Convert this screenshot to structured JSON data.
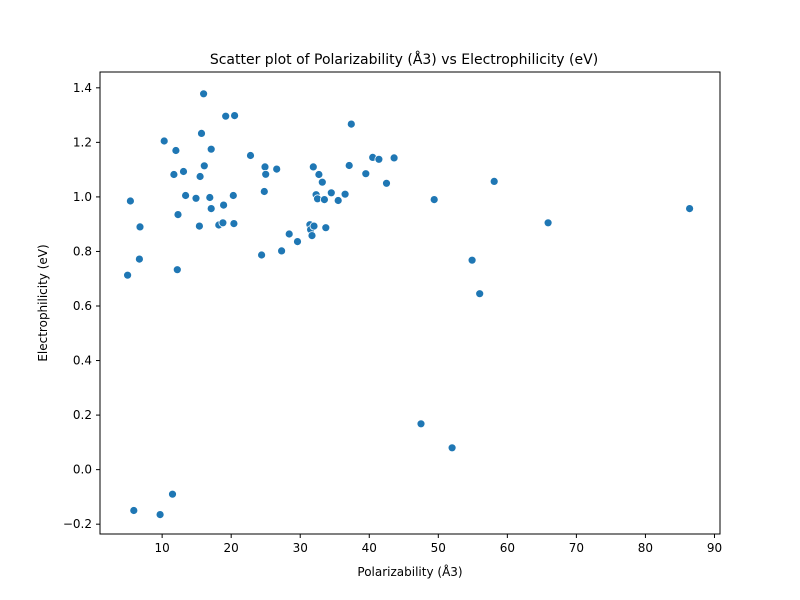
{
  "chart_data": {
    "type": "scatter",
    "title": "Scatter plot of Polarizability (Å3) vs Electrophilicity (eV)",
    "xlabel": "Polarizability (Å3)",
    "ylabel": "Electrophilicity (eV)",
    "xlim": [
      1.0,
      90.8
    ],
    "ylim": [
      -0.236,
      1.458
    ],
    "xticks": [
      10,
      20,
      30,
      40,
      50,
      60,
      70,
      80,
      90
    ],
    "yticks": [
      -0.2,
      0.0,
      0.2,
      0.4,
      0.6,
      0.8,
      1.0,
      1.2,
      1.4
    ],
    "xtick_labels": [
      "10",
      "20",
      "30",
      "40",
      "50",
      "60",
      "70",
      "80",
      "90"
    ],
    "ytick_labels": [
      "−0.2",
      "0.0",
      "0.2",
      "0.4",
      "0.6",
      "0.8",
      "1.0",
      "1.2",
      "1.4"
    ],
    "grid": false,
    "marker_color": "#1f77b4",
    "points": [
      {
        "x": 5.0,
        "y": 0.713
      },
      {
        "x": 5.4,
        "y": 0.985
      },
      {
        "x": 5.9,
        "y": -0.15
      },
      {
        "x": 6.7,
        "y": 0.772
      },
      {
        "x": 6.8,
        "y": 0.89
      },
      {
        "x": 9.7,
        "y": -0.165
      },
      {
        "x": 10.3,
        "y": 1.205
      },
      {
        "x": 11.5,
        "y": -0.09
      },
      {
        "x": 11.7,
        "y": 1.082
      },
      {
        "x": 12.0,
        "y": 1.17
      },
      {
        "x": 12.2,
        "y": 0.733
      },
      {
        "x": 12.3,
        "y": 0.935
      },
      {
        "x": 13.1,
        "y": 1.093
      },
      {
        "x": 13.4,
        "y": 1.005
      },
      {
        "x": 14.9,
        "y": 0.995
      },
      {
        "x": 15.4,
        "y": 0.893
      },
      {
        "x": 15.5,
        "y": 1.075
      },
      {
        "x": 15.7,
        "y": 1.233
      },
      {
        "x": 16.0,
        "y": 1.378
      },
      {
        "x": 16.1,
        "y": 1.114
      },
      {
        "x": 16.9,
        "y": 0.998
      },
      {
        "x": 17.1,
        "y": 1.175
      },
      {
        "x": 17.1,
        "y": 0.957
      },
      {
        "x": 18.2,
        "y": 0.897
      },
      {
        "x": 18.8,
        "y": 0.905
      },
      {
        "x": 18.9,
        "y": 0.97
      },
      {
        "x": 19.2,
        "y": 1.296
      },
      {
        "x": 20.3,
        "y": 1.005
      },
      {
        "x": 20.4,
        "y": 0.902
      },
      {
        "x": 20.5,
        "y": 1.298
      },
      {
        "x": 22.8,
        "y": 1.152
      },
      {
        "x": 24.4,
        "y": 0.787
      },
      {
        "x": 24.8,
        "y": 1.02
      },
      {
        "x": 24.9,
        "y": 1.11
      },
      {
        "x": 25.0,
        "y": 1.083
      },
      {
        "x": 26.6,
        "y": 1.102
      },
      {
        "x": 27.3,
        "y": 0.802
      },
      {
        "x": 28.4,
        "y": 0.864
      },
      {
        "x": 29.6,
        "y": 0.836
      },
      {
        "x": 31.4,
        "y": 0.898
      },
      {
        "x": 31.5,
        "y": 0.88
      },
      {
        "x": 31.7,
        "y": 0.858
      },
      {
        "x": 31.9,
        "y": 1.11
      },
      {
        "x": 32.0,
        "y": 0.893
      },
      {
        "x": 32.3,
        "y": 1.008
      },
      {
        "x": 32.5,
        "y": 0.993
      },
      {
        "x": 32.7,
        "y": 1.082
      },
      {
        "x": 33.2,
        "y": 1.054
      },
      {
        "x": 33.5,
        "y": 0.99
      },
      {
        "x": 33.7,
        "y": 0.887
      },
      {
        "x": 34.5,
        "y": 1.015
      },
      {
        "x": 35.5,
        "y": 0.987
      },
      {
        "x": 36.5,
        "y": 1.01
      },
      {
        "x": 37.1,
        "y": 1.115
      },
      {
        "x": 37.4,
        "y": 1.267
      },
      {
        "x": 39.5,
        "y": 1.085
      },
      {
        "x": 40.5,
        "y": 1.145
      },
      {
        "x": 41.4,
        "y": 1.138
      },
      {
        "x": 42.5,
        "y": 1.05
      },
      {
        "x": 43.6,
        "y": 1.143
      },
      {
        "x": 47.5,
        "y": 0.168
      },
      {
        "x": 49.4,
        "y": 0.99
      },
      {
        "x": 52.0,
        "y": 0.08
      },
      {
        "x": 54.9,
        "y": 0.768
      },
      {
        "x": 56.0,
        "y": 0.645
      },
      {
        "x": 58.1,
        "y": 1.057
      },
      {
        "x": 65.9,
        "y": 0.905
      },
      {
        "x": 86.4,
        "y": 0.957
      }
    ]
  }
}
